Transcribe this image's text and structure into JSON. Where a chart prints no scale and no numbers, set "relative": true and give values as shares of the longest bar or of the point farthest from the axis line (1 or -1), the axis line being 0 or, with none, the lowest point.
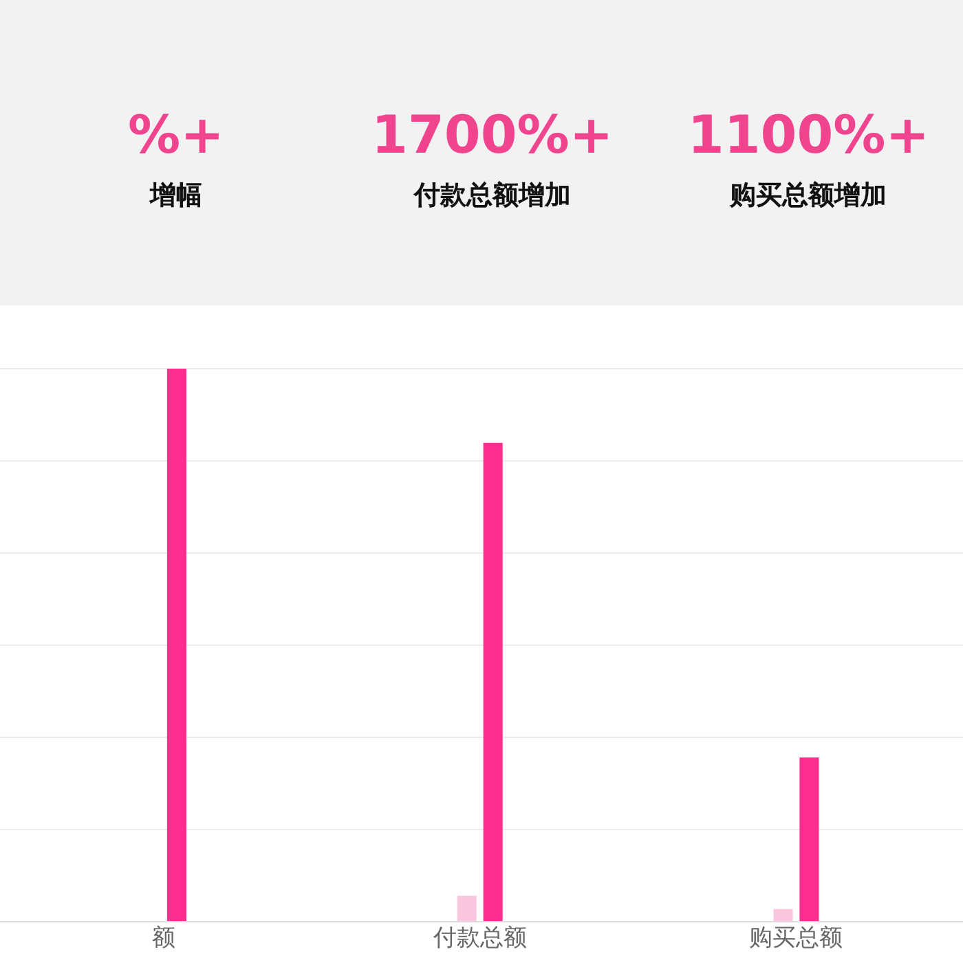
{
  "chart_data": {
    "type": "bar",
    "relative": true,
    "grid": "y",
    "categories": [
      "额",
      "付款总额",
      "购买总额"
    ],
    "series": [
      {
        "color": "#f9c6de",
        "values": [
          null,
          0.047,
          0.023
        ]
      },
      {
        "color": "#fd2e8e",
        "values": [
          1,
          0.866,
          0.297
        ]
      }
    ],
    "annotations": [
      "%+",
      "增幅",
      "1700%+",
      "付款总额增加",
      "1100%+",
      "购买总额增加"
    ]
  }
}
